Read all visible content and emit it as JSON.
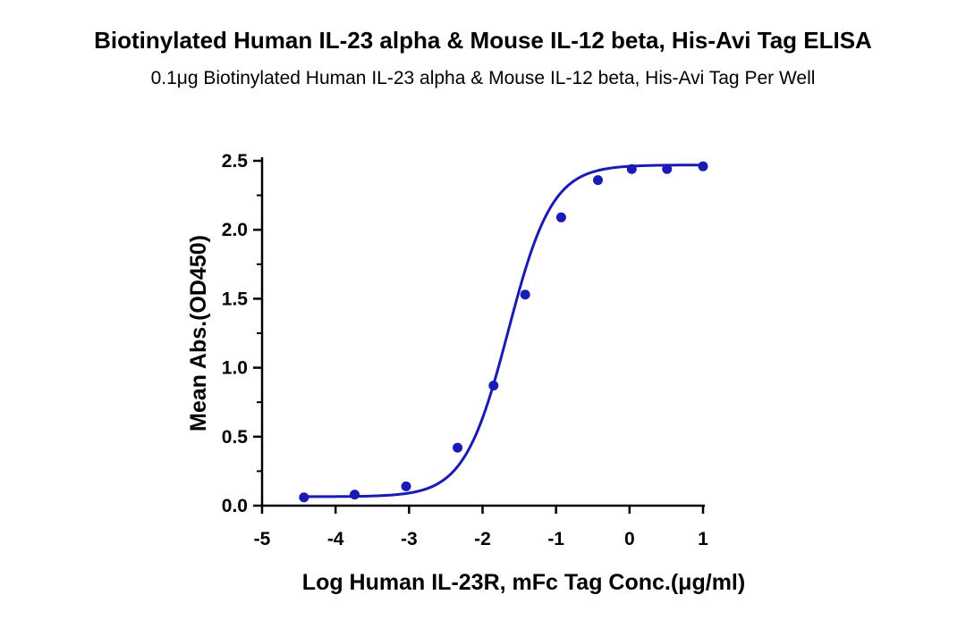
{
  "title": "Biotinylated Human IL-23 alpha & Mouse IL-12 beta, His-Avi Tag ELISA",
  "subtitle": "0.1μg Biotinylated Human IL-23 alpha & Mouse IL-12 beta, His-Avi Tag Per Well",
  "colors": {
    "series": "#1a1ab4",
    "axis": "#000000"
  },
  "chart_data": {
    "type": "scatter",
    "xlabel": "Log Human IL-23R, mFc Tag Conc.(μg/ml)",
    "ylabel": "Mean Abs.(OD450)",
    "xlim": [
      -5,
      1
    ],
    "ylim": [
      0,
      2.5
    ],
    "x_ticks": [
      "-5",
      "-4",
      "-3",
      "-2",
      "-1",
      "0",
      "1"
    ],
    "y_ticks": [
      "0.0",
      "0.5",
      "1.0",
      "1.5",
      "2.0",
      "2.5"
    ],
    "grid": false,
    "series": [
      {
        "x": [
          -4.43,
          -3.74,
          -3.04,
          -2.34,
          -1.85,
          -1.42,
          -0.93,
          -0.43,
          0.03,
          0.51,
          1.0
        ],
        "y": [
          0.06,
          0.08,
          0.14,
          0.42,
          0.87,
          1.53,
          2.09,
          2.36,
          2.44,
          2.44,
          2.46
        ],
        "fit": "sigmoidal (4PL) curve"
      }
    ]
  }
}
